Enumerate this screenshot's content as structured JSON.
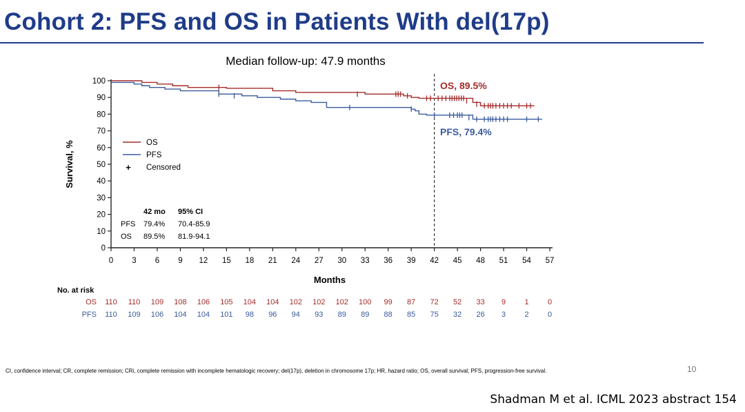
{
  "slide": {
    "title": "Cohort 2: PFS and OS in Patients With del(17p)",
    "footnote": "CI, confidence interval; CR, complete remission; CRi, complete remission with incomplete hematologic recovery; del(17p), deletion in chromosome 17p; HR, hazard ratio; OS, overall survival; PFS, progression-free survival.",
    "page_number": "10",
    "citation": "Shadman M et al. ICML 2023 abstract 154"
  },
  "chart_data": {
    "type": "line",
    "title": "Median follow-up: 47.9 months",
    "xlabel": "Months",
    "ylabel": "Survival, %",
    "xlim": [
      0,
      57
    ],
    "ylim": [
      0,
      100
    ],
    "x_ticks": [
      "0",
      "3",
      "6",
      "9",
      "12",
      "15",
      "18",
      "21",
      "24",
      "27",
      "30",
      "33",
      "36",
      "39",
      "42",
      "45",
      "48",
      "51",
      "54",
      "57"
    ],
    "y_ticks": [
      "0",
      "10",
      "20",
      "30",
      "40",
      "50",
      "60",
      "70",
      "80",
      "90",
      "100"
    ],
    "reference_line": 42,
    "colors": {
      "OS": "#a52a2a",
      "PFS": "#3a5a9c",
      "axis": "#222222"
    },
    "legend": [
      {
        "name": "OS",
        "symbol": "line"
      },
      {
        "name": "PFS",
        "symbol": "line"
      },
      {
        "name": "Censored",
        "symbol": "+"
      }
    ],
    "series": [
      {
        "name": "OS",
        "annotation": "OS, 89.5%",
        "steps": [
          [
            0,
            100
          ],
          [
            4,
            99
          ],
          [
            6,
            98
          ],
          [
            8,
            97
          ],
          [
            10,
            96
          ],
          [
            15,
            95.5
          ],
          [
            21,
            94
          ],
          [
            24,
            93
          ],
          [
            33,
            92
          ],
          [
            38,
            91
          ],
          [
            39,
            90
          ],
          [
            40,
            89.5
          ],
          [
            46,
            89.5
          ],
          [
            47,
            87
          ],
          [
            48,
            85
          ],
          [
            55,
            85
          ]
        ],
        "censored": [
          [
            14,
            96
          ],
          [
            32,
            92
          ],
          [
            37,
            92
          ],
          [
            37.3,
            92
          ],
          [
            37.6,
            92
          ],
          [
            38.5,
            91
          ],
          [
            41,
            89.5
          ],
          [
            41.5,
            89.5
          ],
          [
            42.5,
            89.5
          ],
          [
            43,
            89.5
          ],
          [
            43.5,
            89.5
          ],
          [
            44,
            89.5
          ],
          [
            44.3,
            89.5
          ],
          [
            44.6,
            89.5
          ],
          [
            44.9,
            89.5
          ],
          [
            45.2,
            89.5
          ],
          [
            45.5,
            89.5
          ],
          [
            45.8,
            89.5
          ],
          [
            46.2,
            88
          ],
          [
            47.5,
            86
          ],
          [
            48.5,
            85
          ],
          [
            49,
            85
          ],
          [
            49.3,
            85
          ],
          [
            49.6,
            85
          ],
          [
            50,
            85
          ],
          [
            50.5,
            85
          ],
          [
            51,
            85
          ],
          [
            51.5,
            85
          ],
          [
            52,
            85
          ],
          [
            53,
            85
          ],
          [
            54,
            85
          ],
          [
            54.5,
            85
          ]
        ]
      },
      {
        "name": "PFS",
        "annotation": "PFS, 79.4%",
        "steps": [
          [
            0,
            99
          ],
          [
            3,
            98
          ],
          [
            4,
            97
          ],
          [
            5,
            96
          ],
          [
            7,
            95
          ],
          [
            9,
            94
          ],
          [
            14,
            92
          ],
          [
            17,
            91
          ],
          [
            19,
            90
          ],
          [
            22,
            89
          ],
          [
            24,
            88
          ],
          [
            26,
            87
          ],
          [
            28,
            84
          ],
          [
            39,
            83
          ],
          [
            39.5,
            82
          ],
          [
            40,
            80
          ],
          [
            41,
            79.4
          ],
          [
            46,
            79.4
          ],
          [
            47,
            77
          ],
          [
            56,
            77
          ]
        ],
        "censored": [
          [
            14,
            92
          ],
          [
            16,
            91
          ],
          [
            31,
            84
          ],
          [
            39,
            83
          ],
          [
            42,
            79.4
          ],
          [
            44,
            79.4
          ],
          [
            44.5,
            79.4
          ],
          [
            45,
            79.4
          ],
          [
            45.3,
            79.4
          ],
          [
            45.6,
            79.4
          ],
          [
            46.5,
            78
          ],
          [
            47.5,
            77
          ],
          [
            48.5,
            77
          ],
          [
            49,
            77
          ],
          [
            49.3,
            77
          ],
          [
            49.6,
            77
          ],
          [
            50,
            77
          ],
          [
            50.5,
            77
          ],
          [
            51,
            77
          ],
          [
            51.5,
            77
          ],
          [
            54,
            77
          ],
          [
            55.5,
            77
          ]
        ]
      }
    ],
    "stats_table": {
      "headers": [
        "",
        "42 mo",
        "95% CI"
      ],
      "rows": [
        [
          "PFS",
          "79.4%",
          "70.4-85.9"
        ],
        [
          "OS",
          "89.5%",
          "81.9-94.1"
        ]
      ]
    },
    "risk_table": {
      "title": "No. at risk",
      "rows": [
        {
          "name": "OS",
          "values": [
            "110",
            "110",
            "109",
            "108",
            "106",
            "105",
            "104",
            "104",
            "102",
            "102",
            "102",
            "100",
            "99",
            "87",
            "72",
            "52",
            "33",
            "9",
            "1",
            "0"
          ]
        },
        {
          "name": "PFS",
          "values": [
            "110",
            "109",
            "106",
            "104",
            "104",
            "101",
            "98",
            "96",
            "94",
            "93",
            "89",
            "89",
            "88",
            "85",
            "75",
            "32",
            "26",
            "3",
            "2",
            "0"
          ]
        }
      ]
    }
  }
}
